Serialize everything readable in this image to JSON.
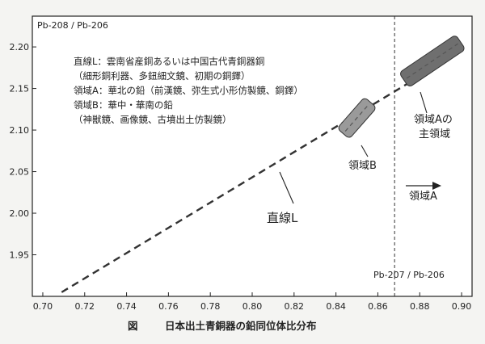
{
  "chart_data": {
    "type": "scatter",
    "y_axis_title": "Pb-208 / Pb-206",
    "x_axis_title": "Pb-207 / Pb-206",
    "xlim": [
      0.695,
      0.905
    ],
    "ylim": [
      1.9,
      2.237
    ],
    "x_ticks": [
      "0.70",
      "0.72",
      "0.74",
      "0.76",
      "0.78",
      "0.80",
      "0.82",
      "0.84",
      "0.86",
      "0.88",
      "0.90"
    ],
    "y_ticks": [
      "1.95",
      "2.00",
      "2.05",
      "2.10",
      "2.15",
      "2.20"
    ],
    "x_tick_values": [
      0.7,
      0.72,
      0.74,
      0.76,
      0.78,
      0.8,
      0.82,
      0.84,
      0.86,
      0.88,
      0.9
    ],
    "y_tick_values": [
      1.95,
      2.0,
      2.05,
      2.1,
      2.15,
      2.2
    ],
    "line_L": {
      "x": [
        0.709,
        0.9
      ],
      "y": [
        1.905,
        2.195
      ]
    },
    "divider_x": 0.868,
    "region_A": {
      "x": [
        0.876,
        0.896
      ],
      "y": [
        2.166,
        2.2
      ]
    },
    "region_B": {
      "x": [
        0.846,
        0.854
      ],
      "y": [
        2.103,
        2.126
      ]
    },
    "annotations": {
      "line_L_label": "直線L",
      "region_B_label": "領域B",
      "region_A_main_line1": "領域Aの",
      "region_A_main_line2": "主領域",
      "region_A_label": "領域A"
    },
    "legend": [
      "直線L：雲南省産銅あるいは中国古代青銅器銅",
      "（細形銅利器、多鈕細文鏡、初期の銅鐸）",
      "領域A：華北の鉛（前漢鏡、弥生式小形仿製鏡、銅鐸）",
      "領域B：華中・華南の鉛",
      "（神獣鏡、画像鏡、古墳出土仿製鏡）"
    ],
    "caption_label": "図",
    "caption_title": "日本出土青銅器の鉛同位体比分布"
  }
}
